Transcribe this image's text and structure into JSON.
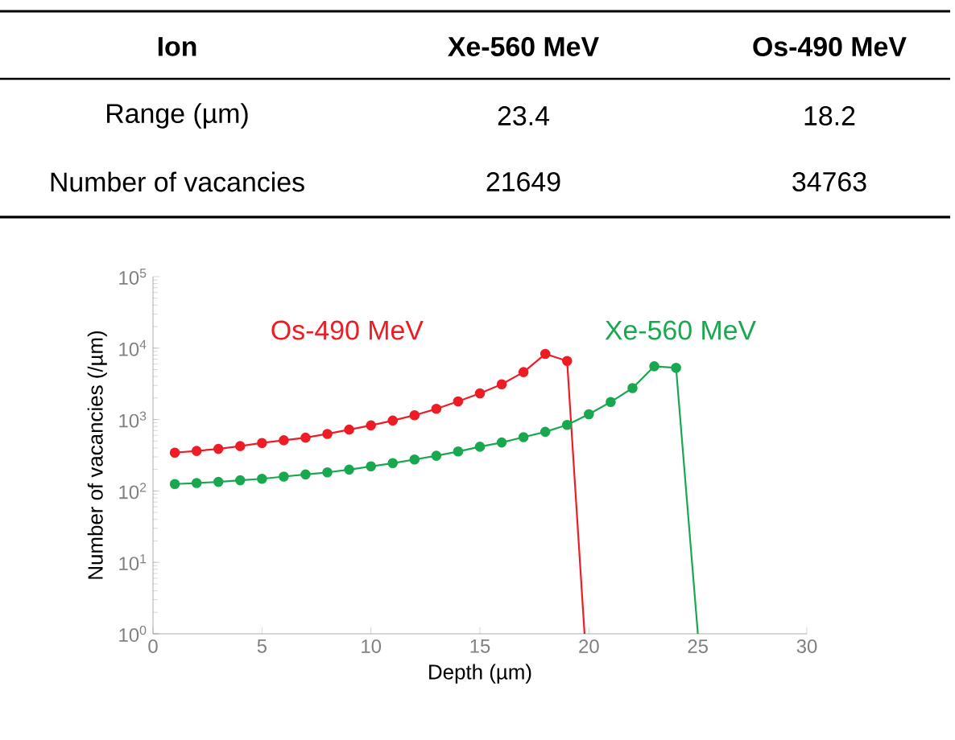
{
  "chart_data": {
    "type": "line",
    "xlabel": "Depth (µm)",
    "ylabel": "Number of vacancies (/µm)",
    "xlim": [
      0,
      30
    ],
    "xticks": [
      0,
      5,
      10,
      15,
      20,
      25,
      30
    ],
    "ylim": [
      1,
      100000
    ],
    "log": "y",
    "yticks": [
      {
        "value": 1,
        "label": "10$^{0}$"
      },
      {
        "value": 10,
        "label": "10$^{1}$"
      },
      {
        "value": 100,
        "label": "10$^{2}$"
      },
      {
        "value": 1000,
        "label": "10$^{3}$"
      },
      {
        "value": 10000,
        "label": "10$^{4}$"
      },
      {
        "value": 100000,
        "label": "10$^{5}$"
      }
    ],
    "grid": false,
    "legend": false,
    "marker": "circle",
    "line_style": "solid",
    "series": [
      {
        "name": "Os-490 MeV",
        "color": "#ee1c25",
        "x": [
          1,
          2,
          3,
          4,
          5,
          6,
          7,
          8,
          9,
          10,
          11,
          12,
          13,
          14,
          15,
          16,
          17,
          18,
          19,
          19.8
        ],
        "values": [
          344,
          363,
          388,
          424,
          470,
          512,
          557,
          629,
          722,
          828,
          966,
          1148,
          1410,
          1794,
          2323,
          3113,
          4615,
          8280,
          6620,
          1
        ]
      },
      {
        "name": "Xe-560 MeV",
        "color": "#19a84f",
        "x": [
          1,
          2,
          3,
          4,
          5,
          6,
          7,
          8,
          9,
          10,
          11,
          12,
          13,
          14,
          15,
          16,
          17,
          18,
          19,
          20,
          21,
          22,
          23,
          24,
          25
        ],
        "values": [
          125,
          129,
          134,
          141,
          148,
          159,
          170,
          182,
          199,
          221,
          245,
          276,
          311,
          357,
          416,
          477,
          567,
          673,
          842,
          1188,
          1762,
          2756,
          5570,
          5290,
          1
        ]
      }
    ],
    "annotations": [
      "Ion",
      "Xe-560 MeV",
      "Os-490 MeV",
      "Range (µm)",
      "23.4",
      "18.2",
      "Number of vacancies",
      "21649",
      "34763"
    ]
  }
}
